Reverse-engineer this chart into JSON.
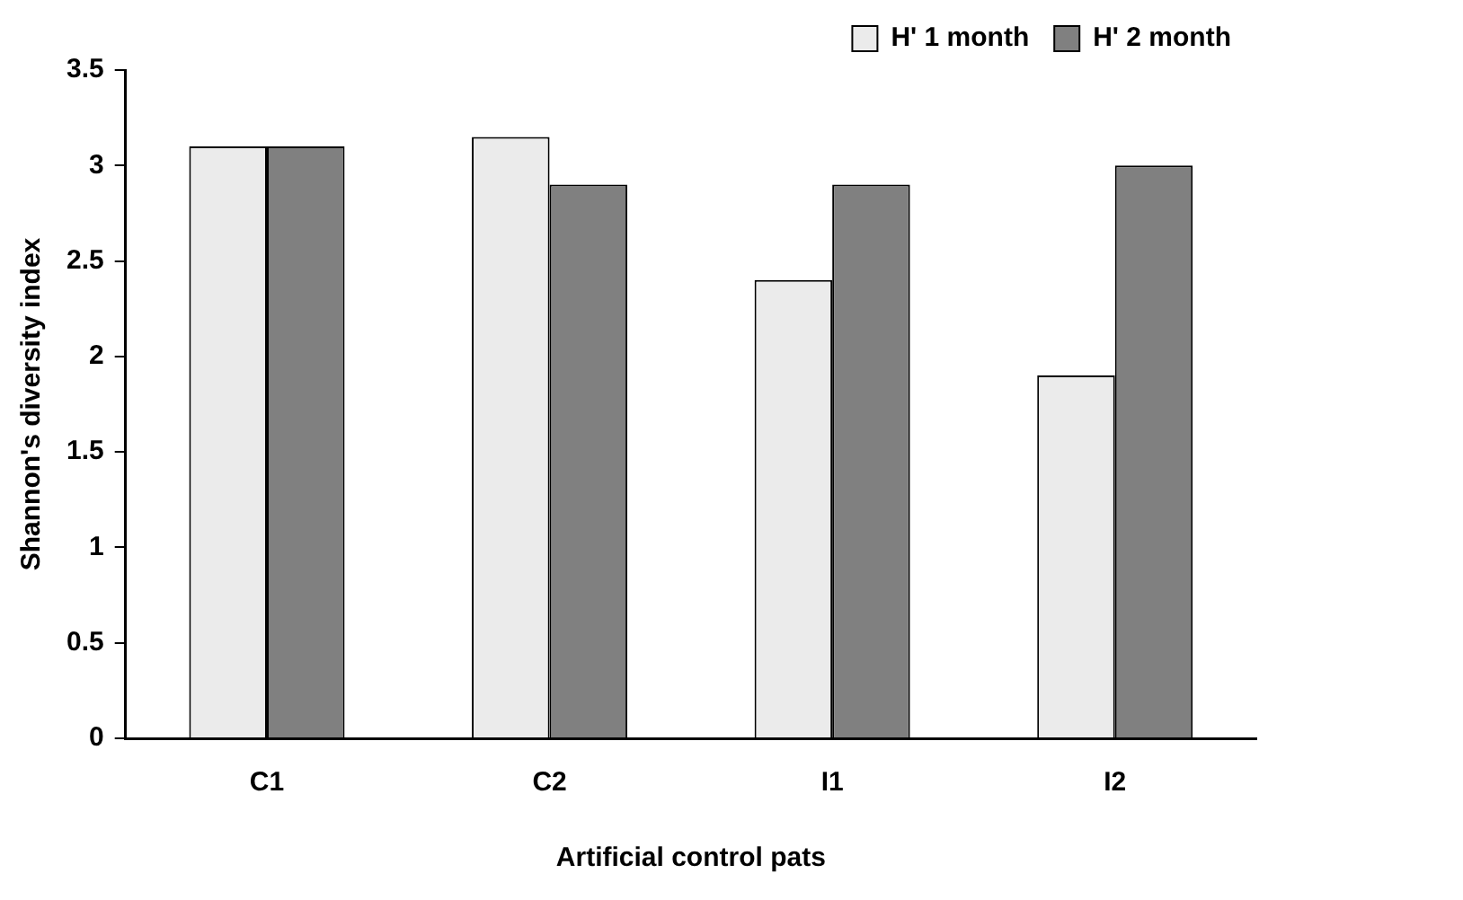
{
  "chart_data": {
    "type": "bar",
    "xlabel": "Artificial control pats",
    "ylabel": "Shannon's diversity index",
    "categories": [
      "C1",
      "C2",
      "I1",
      "I2"
    ],
    "series": [
      {
        "name": "H' 1 month",
        "color": "#ebebeb",
        "values": [
          3.1,
          3.15,
          2.4,
          1.9
        ]
      },
      {
        "name": "H' 2 month",
        "color": "#808080",
        "values": [
          3.1,
          2.9,
          2.9,
          3.0
        ]
      }
    ],
    "ylim": [
      0,
      3.5
    ],
    "yticks": [
      0,
      0.5,
      1,
      1.5,
      2,
      2.5,
      3,
      3.5
    ],
    "grid": false,
    "legend": "top right"
  }
}
